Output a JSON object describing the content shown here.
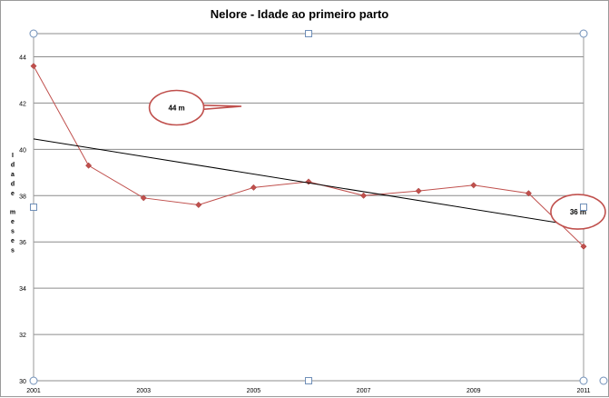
{
  "chart_data": {
    "type": "line",
    "title": "Nelore - Idade ao primeiro parto",
    "xlabel": "",
    "ylabel": "Idade meses",
    "ylabel_lines": [
      "Idade",
      "meses"
    ],
    "x": [
      2001,
      2002,
      2003,
      2004,
      2005,
      2006,
      2007,
      2008,
      2009,
      2010,
      2011
    ],
    "x_ticks": [
      "2001",
      "2003",
      "2005",
      "2007",
      "2009",
      "2011"
    ],
    "y_ticks": [
      "30",
      "32",
      "34",
      "36",
      "38",
      "40",
      "42",
      "44"
    ],
    "xlim": [
      2001,
      2011
    ],
    "ylim": [
      30,
      45
    ],
    "grid": "horizontal",
    "legend": "none",
    "series": [
      {
        "color": "#c0504d",
        "marker": "diamond",
        "values": [
          43.6,
          39.3,
          37.9,
          37.6,
          38.35,
          38.6,
          38.0,
          38.2,
          38.45,
          38.1,
          35.8
        ]
      }
    ],
    "trendline": {
      "type": "linear",
      "color": "#000000",
      "start": [
        2001,
        40.45
      ],
      "end": [
        2011,
        36.65
      ]
    },
    "annotations": [
      {
        "text": "44 m",
        "x": 2003.6,
        "y": 41.8
      },
      {
        "text": "36 m",
        "x": 2010.9,
        "y": 37.3
      }
    ]
  }
}
